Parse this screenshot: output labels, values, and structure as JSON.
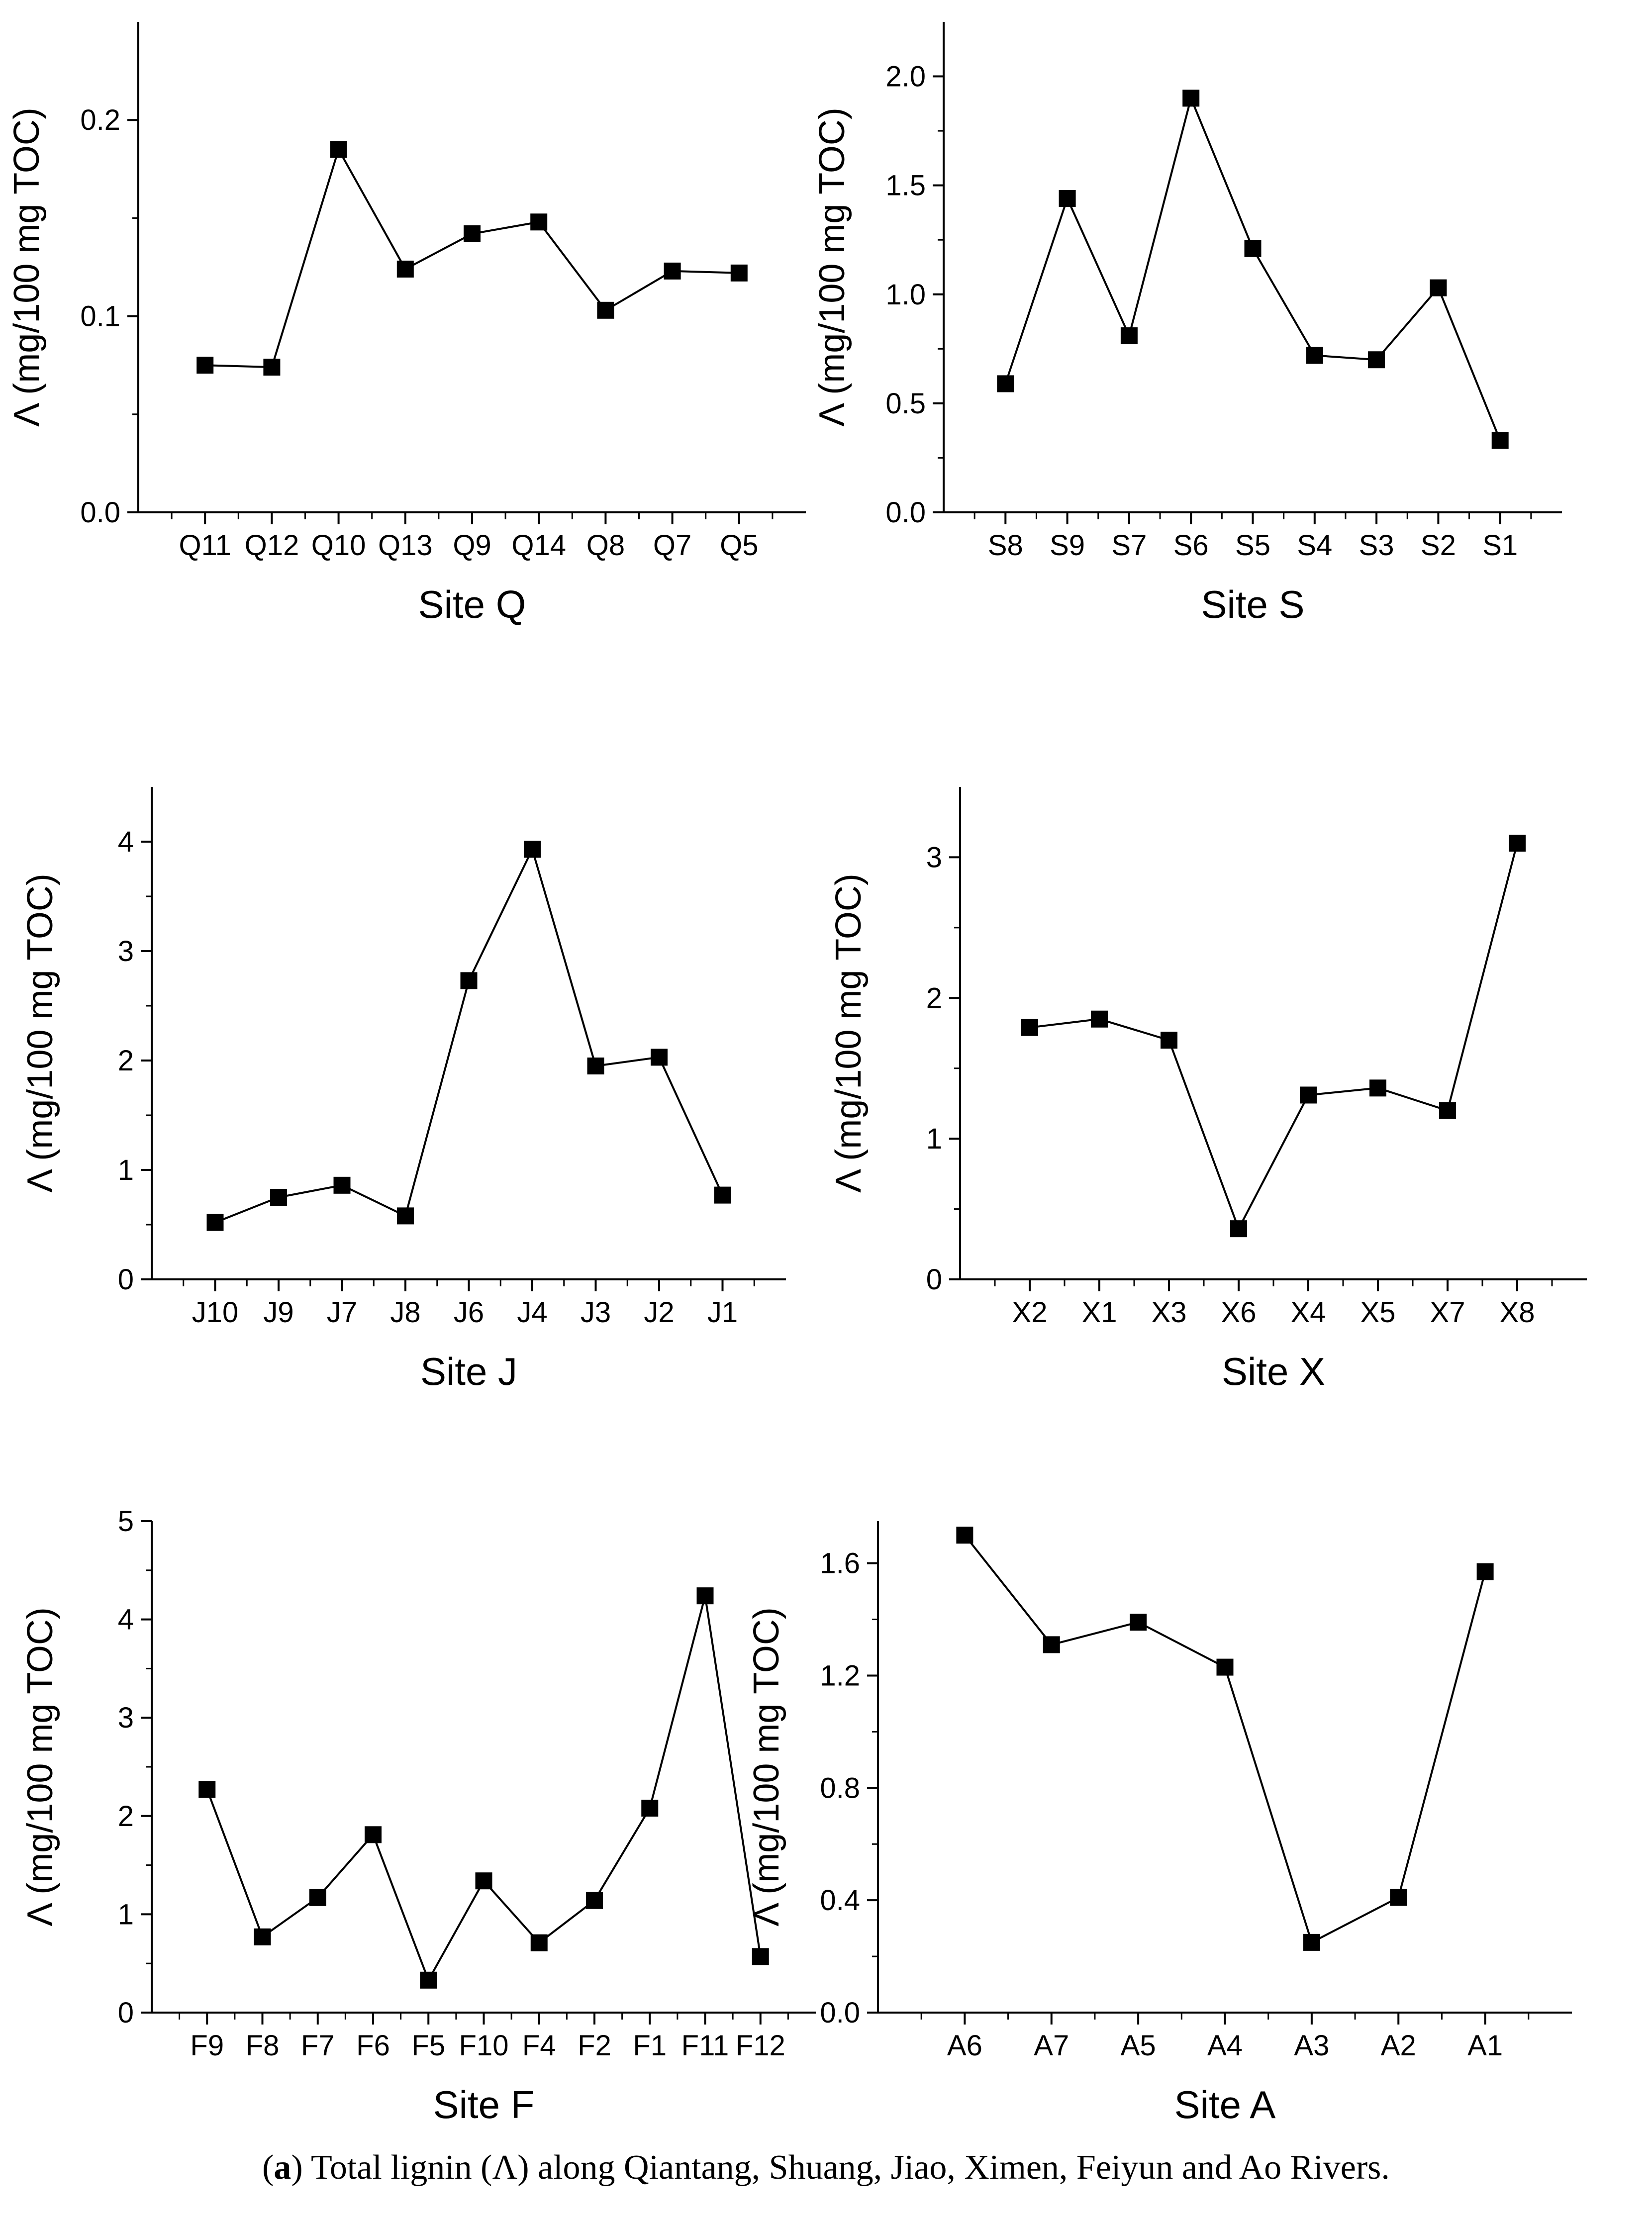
{
  "figure": {
    "caption_prefix": "(",
    "caption_label": "a",
    "caption_text": ") Total lignin (Λ) along Qiantang, Shuang, Jiao, Ximen, Feiyun and Ao Rivers."
  },
  "colors": {
    "line": "#000000",
    "marker": "#000000",
    "background": "#ffffff"
  },
  "chart_data": [
    {
      "type": "line",
      "xlabel": "Site Q",
      "ylabel": "Λ (mg/100 mg TOC)",
      "categories": [
        "Q11",
        "Q12",
        "Q10",
        "Q13",
        "Q9",
        "Q14",
        "Q8",
        "Q7",
        "Q5"
      ],
      "values": [
        0.075,
        0.074,
        0.185,
        0.124,
        0.142,
        0.148,
        0.103,
        0.123,
        0.122
      ],
      "ylim": [
        0,
        0.25
      ],
      "yticks": [
        0.0,
        0.1,
        0.2
      ],
      "ytick_labels": [
        "0.0",
        "0.1",
        "0.2"
      ]
    },
    {
      "type": "line",
      "xlabel": "Site S",
      "ylabel": "Λ (mg/100 mg TOC)",
      "categories": [
        "S8",
        "S9",
        "S7",
        "S6",
        "S5",
        "S4",
        "S3",
        "S2",
        "S1"
      ],
      "values": [
        0.59,
        1.44,
        0.81,
        1.9,
        1.21,
        0.72,
        0.7,
        1.03,
        0.33
      ],
      "ylim": [
        0,
        2.25
      ],
      "yticks": [
        0.0,
        0.5,
        1.0,
        1.5,
        2.0
      ],
      "ytick_labels": [
        "0.0",
        "0.5",
        "1.0",
        "1.5",
        "2.0"
      ]
    },
    {
      "type": "line",
      "xlabel": "Site J",
      "ylabel": "Λ (mg/100 mg TOC)",
      "categories": [
        "J10",
        "J9",
        "J7",
        "J8",
        "J6",
        "J4",
        "J3",
        "J2",
        "J1"
      ],
      "values": [
        0.52,
        0.75,
        0.86,
        0.58,
        2.73,
        3.93,
        1.95,
        2.03,
        0.77
      ],
      "ylim": [
        0,
        4.5
      ],
      "yticks": [
        0,
        1,
        2,
        3,
        4
      ],
      "ytick_labels": [
        "0",
        "1",
        "2",
        "3",
        "4"
      ]
    },
    {
      "type": "line",
      "xlabel": "Site X",
      "ylabel": "Λ (mg/100 mg TOC)",
      "categories": [
        "X2",
        "X1",
        "X3",
        "X6",
        "X4",
        "X5",
        "X7",
        "X8"
      ],
      "values": [
        1.79,
        1.85,
        1.7,
        0.36,
        1.31,
        1.36,
        1.2,
        3.1
      ],
      "ylim": [
        0,
        3.5
      ],
      "yticks": [
        0,
        1,
        2,
        3
      ],
      "ytick_labels": [
        "0",
        "1",
        "2",
        "3"
      ]
    },
    {
      "type": "line",
      "xlabel": "Site F",
      "ylabel": "Λ (mg/100 mg TOC)",
      "categories": [
        "F9",
        "F8",
        "F7",
        "F6",
        "F5",
        "F10",
        "F4",
        "F2",
        "F1",
        "F11",
        "F12"
      ],
      "values": [
        2.27,
        0.77,
        1.17,
        1.81,
        0.33,
        1.34,
        0.71,
        1.14,
        2.08,
        4.24,
        0.57
      ],
      "ylim": [
        0,
        5
      ],
      "yticks": [
        0,
        1,
        2,
        3,
        4,
        5
      ],
      "ytick_labels": [
        "0",
        "1",
        "2",
        "3",
        "4",
        "5"
      ]
    },
    {
      "type": "line",
      "xlabel": "Site A",
      "ylabel": "Λ (mg/100 mg TOC)",
      "categories": [
        "A6",
        "A7",
        "A5",
        "A4",
        "A3",
        "A2",
        "A1"
      ],
      "values": [
        1.7,
        1.31,
        1.39,
        1.23,
        0.25,
        0.41,
        1.57
      ],
      "ylim": [
        0,
        1.75
      ],
      "yticks": [
        0.0,
        0.4,
        0.8,
        1.2,
        1.6
      ],
      "ytick_labels": [
        "0.0",
        "0.4",
        "0.8",
        "1.2",
        "1.6"
      ]
    }
  ]
}
